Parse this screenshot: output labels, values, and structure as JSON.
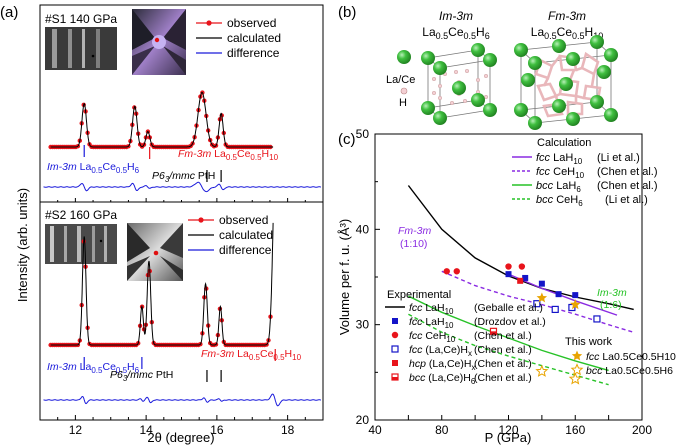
{
  "panels": {
    "a": "(a)",
    "b": "(b)",
    "c": "(c)"
  },
  "colors": {
    "observed": "#e8141b",
    "calculated": "#000000",
    "difference": "#1a1adb",
    "purple": "#8a2be2",
    "green": "#27c227",
    "blue": "#1414c8",
    "orange": "#e8a400",
    "bond": "#e8b4b8",
    "atom_green": "#39b839"
  },
  "panel_a": {
    "ylabel": "Intensity (arb. units)",
    "xlabel": "2θ (degree)",
    "top": {
      "sample": "#S1 140 GPa",
      "legend": [
        "observed",
        "calculated",
        "difference"
      ],
      "phase_left": {
        "pre": "Im-3m",
        "post": "La",
        "s1": "0.5",
        "mid": "Ce",
        "s2": "0.5",
        "end": "H",
        "s3": "6"
      },
      "phase_right": {
        "pre": "Fm-3m",
        "post": "La",
        "s1": "0.5",
        "mid": "Ce",
        "s2": "0.5",
        "end": "H",
        "s3": "10"
      },
      "phase_pt": {
        "pre": "P6",
        "sub": "3",
        "post": "/mmc",
        "end": "PtH"
      }
    },
    "bottom": {
      "sample": "#S2 160 GPa",
      "legend": [
        "observed",
        "calculated",
        "difference"
      ],
      "phase_left": {
        "pre": "Im-3m",
        "post": "La",
        "s1": "0.5",
        "mid": "Ce",
        "s2": "0.5",
        "end": "H",
        "s3": "6"
      },
      "phase_right": {
        "pre": "Fm-3m",
        "post": "La",
        "s1": "0.5",
        "mid": "Ce",
        "s2": "0.5",
        "end": "H",
        "s3": "10"
      },
      "phase_pt": {
        "pre": "P6",
        "sub": "3",
        "post": "/mmc",
        "end": "PtH"
      }
    }
  },
  "panel_b": {
    "left_title": "Im-3m",
    "left_formula": {
      "a": "La",
      "s1": "0.5",
      "b": "Ce",
      "s2": "0.5",
      "c": "H",
      "s3": "6"
    },
    "right_title": "Fm-3m",
    "right_formula": {
      "a": "La",
      "s1": "0.5",
      "b": "Ce",
      "s2": "0.5",
      "c": "H",
      "s3": "10"
    },
    "legend_lace": "La/Ce",
    "legend_h": "H"
  },
  "panel_c": {
    "ylabel": "Volume per f. u. (Å³)",
    "xlabel": "P (GPa)",
    "calc_title": "Calculation",
    "calc_legend": [
      {
        "pre": "fcc",
        "name": "LaH",
        "sub": "10",
        "ref": "(Li et al.)"
      },
      {
        "pre": "fcc",
        "name": "CeH",
        "sub": "10",
        "ref": "(Chen et al.)"
      },
      {
        "pre": "bcc",
        "name": "LaH",
        "sub": "6",
        "ref": "(Chen et al.)"
      },
      {
        "pre": "bcc",
        "name": "CeH",
        "sub": "6",
        "ref": "(Li et al.)"
      }
    ],
    "exp_title": "Experimental",
    "exp_legend": [
      {
        "pre": "fcc",
        "name": "LaH",
        "sub": "10",
        "ref": "(Geballe et al.)"
      },
      {
        "pre": "fcc",
        "name": "LaH",
        "sub": "10",
        "ref": "(Drozdov et al.)"
      },
      {
        "pre": "fcc",
        "name": "CeH",
        "sub": "10",
        "ref": "(Chen et al.)"
      },
      {
        "pre": "fcc",
        "name": "(La,Ce)H",
        "sub": "x",
        "ref": "(Chen et al.)"
      },
      {
        "pre": "hcp",
        "name": "(La,Ce)H",
        "sub": "x",
        "ref": "(Chen et al.)"
      },
      {
        "pre": "bcc",
        "name": "(La,Ce)H",
        "sub": "6",
        "ref": "(Chen et al.)"
      }
    ],
    "this_work_title": "This work",
    "this_work_legend": [
      {
        "pre": "fcc",
        "name": "La0.5Ce0.5H10"
      },
      {
        "pre": "bcc",
        "name": "La0.5Ce0.5H6"
      }
    ],
    "annot_fm": "Fm-3m",
    "annot_fm_ratio": "(1:10)",
    "annot_im": "Im-3m",
    "annot_im_ratio": "(1:6)"
  },
  "chart_data": [
    {
      "type": "line",
      "title": "#S1 140 GPa",
      "xlabel": "2θ (degree)",
      "ylabel": "Intensity (arb. units)",
      "xlim": [
        11,
        19
      ],
      "x_ticks": [
        12,
        14,
        16,
        18
      ],
      "background": 0,
      "peaks": [
        {
          "x": 12.25,
          "h": 0.62,
          "w": 0.09
        },
        {
          "x": 13.68,
          "h": 0.58,
          "w": 0.09
        },
        {
          "x": 14.05,
          "h": 0.22,
          "w": 0.08
        },
        {
          "x": 15.58,
          "h": 0.78,
          "w": 0.16
        },
        {
          "x": 16.12,
          "h": 0.48,
          "w": 0.08
        }
      ],
      "im3m_ticks": [
        12.25
      ],
      "fm3m_ticks": [
        14.1
      ],
      "pth_ticks": [
        15.72,
        16.12
      ],
      "series": [
        "observed",
        "calculated",
        "difference"
      ]
    },
    {
      "type": "line",
      "title": "#S2 160 GPa",
      "xlabel": "2θ (degree)",
      "ylabel": "Intensity (arb. units)",
      "xlim": [
        11,
        19
      ],
      "x_ticks": [
        12,
        14,
        16,
        18
      ],
      "peaks": [
        {
          "x": 12.25,
          "h": 0.62,
          "w": 0.07
        },
        {
          "x": 13.88,
          "h": 0.22,
          "w": 0.06
        },
        {
          "x": 14.08,
          "h": 0.48,
          "w": 0.07
        },
        {
          "x": 15.68,
          "h": 0.35,
          "w": 0.07
        },
        {
          "x": 16.1,
          "h": 0.22,
          "w": 0.06
        },
        {
          "x": 17.65,
          "h": 1.0,
          "w": 0.1
        }
      ],
      "im3m_ticks": [
        12.25,
        13.88
      ],
      "fm3m_ticks": [
        17.65
      ],
      "pth_ticks": [
        15.72,
        16.12
      ],
      "series": [
        "observed",
        "calculated",
        "difference"
      ]
    },
    {
      "type": "scatter",
      "xlabel": "P (GPa)",
      "ylabel": "Volume per f. u. (Å³)",
      "xlim": [
        40,
        200
      ],
      "ylim": [
        20,
        50
      ],
      "x_ticks": [
        40,
        60,
        80,
        100,
        120,
        140,
        160,
        180,
        200
      ],
      "y_ticks": [
        20,
        30,
        40,
        50
      ],
      "lines": [
        {
          "name": "fcc LaH10 (Geballe et al.)",
          "color": "#000000",
          "dash": false,
          "x": [
            60,
            80,
            100,
            120,
            140,
            160,
            180,
            195
          ],
          "y": [
            44.6,
            40.0,
            37.0,
            35.1,
            33.8,
            32.9,
            32.2,
            31.6
          ]
        },
        {
          "name": "fcc LaH10 (Li et al.)",
          "color": "#8a2be2",
          "dash": false,
          "x": [
            120,
            140,
            160,
            185
          ],
          "y": [
            35.3,
            33.8,
            32.5,
            31.0
          ]
        },
        {
          "name": "fcc CeH10 (Chen et al.)",
          "color": "#8a2be2",
          "dash": true,
          "x": [
            80,
            100,
            120,
            140,
            160,
            180,
            195
          ],
          "y": [
            35.6,
            34.1,
            33.0,
            32.1,
            31.1,
            30.0,
            29.2
          ]
        },
        {
          "name": "bcc LaH6 (Chen et al.)",
          "color": "#27c227",
          "dash": false,
          "x": [
            60,
            80,
            100,
            120,
            140,
            160,
            180
          ],
          "y": [
            33.0,
            31.3,
            29.9,
            28.6,
            27.3,
            26.2,
            25.2
          ]
        },
        {
          "name": "bcc CeH6 (Li et al.)",
          "color": "#27c227",
          "dash": true,
          "x": [
            60,
            80,
            100,
            120,
            140,
            160,
            180
          ],
          "y": [
            31.1,
            29.2,
            27.8,
            26.7,
            25.7,
            24.7,
            23.7
          ]
        }
      ],
      "points": [
        {
          "series": "fcc LaH10 (Drozdov et al.)",
          "marker": "square-filled",
          "color": "#1414c8",
          "x": [
            120,
            130,
            140,
            150,
            160
          ],
          "y": [
            35.3,
            34.9,
            34.3,
            33.2,
            33.1
          ]
        },
        {
          "series": "fcc CeH10 (Chen et al.)",
          "marker": "circle-filled",
          "color": "#e8141b",
          "x": [
            83,
            89,
            120,
            128
          ],
          "y": [
            35.6,
            35.6,
            36.1,
            36.1
          ]
        },
        {
          "series": "fcc (La,Ce)Hx (Chen et al.)",
          "marker": "square-open",
          "color": "#1414c8",
          "x": [
            137,
            148,
            158,
            173
          ],
          "y": [
            32.2,
            31.6,
            31.8,
            30.6
          ]
        },
        {
          "series": "hcp (La,Ce)Hx (Chen et al.)",
          "marker": "square-filled",
          "color": "#e8141b",
          "x": [
            127
          ],
          "y": [
            34.6
          ]
        },
        {
          "series": "bcc (La,Ce)H6 (Chen et al.)",
          "marker": "square-half",
          "color": "#e8141b",
          "x": [
            111
          ],
          "y": [
            29.3
          ]
        },
        {
          "series": "fcc La0.5Ce0.5H10 (This work)",
          "marker": "star-filled",
          "color": "#e8a400",
          "x": [
            140,
            160
          ],
          "y": [
            32.8,
            32.1
          ]
        },
        {
          "series": "bcc La0.5Ce0.5H6 (This work)",
          "marker": "star-open",
          "color": "#e8a400",
          "x": [
            140,
            160
          ],
          "y": [
            25.1,
            24.3
          ]
        }
      ]
    }
  ]
}
